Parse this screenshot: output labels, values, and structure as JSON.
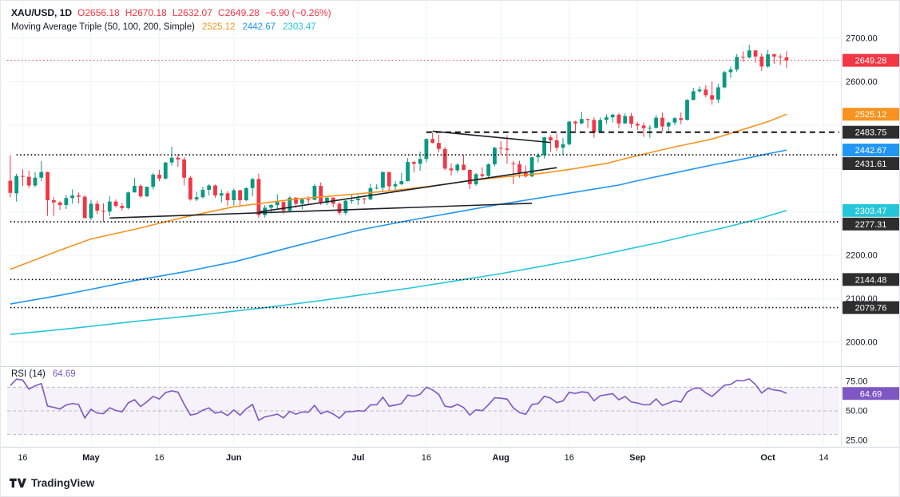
{
  "legend": {
    "title": "XAU/USD, 1D",
    "o_k": "O",
    "o_v": "2656.18",
    "h_k": "H",
    "h_v": "2670.18",
    "l_k": "L",
    "l_v": "2632.07",
    "c_k": "C",
    "c_v": "2649.28",
    "change": "−6.90 (−0.26%)",
    "ma_label": "Moving Average Triple (50, 100, 200, Simple)",
    "ma50": "2525.12",
    "ma100": "2442.67",
    "ma200": "2303.47",
    "rsi_label": "RSI (14)",
    "rsi_value": "64.69"
  },
  "footer": {
    "logo_text": "TradingView"
  },
  "colors": {
    "up": "#089981",
    "down": "#F23645",
    "ma50": "#F7931E",
    "ma100": "#2196F3",
    "ma200": "#26C6DA",
    "rsi": "#7E57C2",
    "rsi_band": "rgba(126,87,194,0.08)",
    "last_price": "#F23645",
    "grid": "#F0F3FA",
    "axis_text": "#131722",
    "badge_dark": "#2E2E2E",
    "level": "#000000",
    "trendline": "#1B1F27",
    "separator": "#D1D4DC",
    "badge_text": "#FFFFFF"
  },
  "chart_data": {
    "type": "candlestick",
    "symbol": "XAU/USD",
    "timeframe": "1D",
    "title": "XAU/USD 1D with Moving Average Triple (50, 100, 200, Simple) and RSI (14)",
    "total_slots": 134,
    "price_axis": {
      "visible_ticks": [
        {
          "v": 2700,
          "label": "2700.00"
        },
        {
          "v": 2600,
          "label": "2600.00"
        },
        {
          "v": 2200,
          "label": "2200.00"
        },
        {
          "v": 2100,
          "label": "2100.00"
        },
        {
          "v": 2000,
          "label": "2000.00"
        }
      ],
      "gridlines": [
        2000,
        2100,
        2200,
        2300,
        2400,
        2500,
        2600,
        2700
      ]
    },
    "time_ticks": [
      {
        "i": 2,
        "label": "16",
        "bold": false
      },
      {
        "i": 13,
        "label": "May",
        "bold": true
      },
      {
        "i": 24,
        "label": "16",
        "bold": false
      },
      {
        "i": 36,
        "label": "Jun",
        "bold": true
      },
      {
        "i": 56,
        "label": "Jul",
        "bold": true
      },
      {
        "i": 67,
        "label": "16",
        "bold": false
      },
      {
        "i": 79,
        "label": "Aug",
        "bold": true
      },
      {
        "i": 90,
        "label": "16",
        "bold": false
      },
      {
        "i": 101,
        "label": "Sep",
        "bold": true
      },
      {
        "i": 122,
        "label": "Oct",
        "bold": true
      },
      {
        "i": 131,
        "label": "14",
        "bold": false
      }
    ],
    "candles": [
      [
        2372,
        2431,
        2334,
        2344
      ],
      [
        2343,
        2388,
        2324,
        2383
      ],
      [
        2383,
        2398,
        2360,
        2381
      ],
      [
        2381,
        2395,
        2355,
        2361
      ],
      [
        2361,
        2392,
        2357,
        2379
      ],
      [
        2379,
        2417,
        2371,
        2392
      ],
      [
        2392,
        2393,
        2291,
        2327
      ],
      [
        2327,
        2334,
        2291,
        2322
      ],
      [
        2322,
        2325,
        2305,
        2316
      ],
      [
        2316,
        2339,
        2307,
        2332
      ],
      [
        2332,
        2352,
        2319,
        2338
      ],
      [
        2338,
        2345,
        2320,
        2335
      ],
      [
        2335,
        2339,
        2285,
        2286
      ],
      [
        2286,
        2328,
        2281,
        2319
      ],
      [
        2319,
        2326,
        2295,
        2303
      ],
      [
        2303,
        2320,
        2277,
        2301
      ],
      [
        2301,
        2336,
        2291,
        2324
      ],
      [
        2324,
        2329,
        2310,
        2314
      ],
      [
        2314,
        2321,
        2303,
        2309
      ],
      [
        2309,
        2347,
        2306,
        2345
      ],
      [
        2345,
        2378,
        2345,
        2360
      ],
      [
        2360,
        2364,
        2332,
        2336
      ],
      [
        2336,
        2359,
        2334,
        2358
      ],
      [
        2358,
        2390,
        2352,
        2386
      ],
      [
        2386,
        2397,
        2371,
        2377
      ],
      [
        2377,
        2415,
        2375,
        2414
      ],
      [
        2414,
        2450,
        2407,
        2425
      ],
      [
        2425,
        2433,
        2404,
        2421
      ],
      [
        2421,
        2426,
        2361,
        2379
      ],
      [
        2379,
        2383,
        2326,
        2329
      ],
      [
        2329,
        2347,
        2325,
        2334
      ],
      [
        2334,
        2358,
        2331,
        2351
      ],
      [
        2351,
        2364,
        2338,
        2361
      ],
      [
        2361,
        2363,
        2333,
        2338
      ],
      [
        2338,
        2352,
        2322,
        2343
      ],
      [
        2343,
        2348,
        2314,
        2327
      ],
      [
        2327,
        2354,
        2315,
        2350
      ],
      [
        2350,
        2351,
        2315,
        2327
      ],
      [
        2327,
        2357,
        2325,
        2355
      ],
      [
        2355,
        2378,
        2336,
        2376
      ],
      [
        2376,
        2388,
        2286,
        2293
      ],
      [
        2293,
        2316,
        2287,
        2310
      ],
      [
        2310,
        2318,
        2297,
        2316
      ],
      [
        2316,
        2341,
        2306,
        2323
      ],
      [
        2323,
        2327,
        2296,
        2303
      ],
      [
        2303,
        2336,
        2301,
        2333
      ],
      [
        2333,
        2334,
        2310,
        2319
      ],
      [
        2319,
        2332,
        2306,
        2329
      ],
      [
        2329,
        2336,
        2319,
        2328
      ],
      [
        2328,
        2365,
        2327,
        2360
      ],
      [
        2360,
        2368,
        2316,
        2321
      ],
      [
        2321,
        2334,
        2316,
        2333
      ],
      [
        2333,
        2334,
        2311,
        2319
      ],
      [
        2319,
        2323,
        2293,
        2298
      ],
      [
        2298,
        2327,
        2293,
        2326
      ],
      [
        2326,
        2339,
        2319,
        2327
      ],
      [
        2327,
        2339,
        2316,
        2331
      ],
      [
        2331,
        2333,
        2318,
        2329
      ],
      [
        2329,
        2365,
        2327,
        2355
      ],
      [
        2355,
        2364,
        2352,
        2356
      ],
      [
        2356,
        2393,
        2348,
        2392
      ],
      [
        2392,
        2392,
        2350,
        2359
      ],
      [
        2359,
        2371,
        2351,
        2364
      ],
      [
        2364,
        2390,
        2362,
        2371
      ],
      [
        2371,
        2424,
        2370,
        2415
      ],
      [
        2415,
        2418,
        2391,
        2411
      ],
      [
        2411,
        2439,
        2395,
        2422
      ],
      [
        2422,
        2469,
        2414,
        2468
      ],
      [
        2468,
        2483,
        2458,
        2459
      ],
      [
        2459,
        2478,
        2438,
        2445
      ],
      [
        2445,
        2450,
        2396,
        2400
      ],
      [
        2400,
        2412,
        2384,
        2396
      ],
      [
        2396,
        2412,
        2391,
        2409
      ],
      [
        2409,
        2432,
        2396,
        2397
      ],
      [
        2397,
        2398,
        2353,
        2364
      ],
      [
        2364,
        2390,
        2360,
        2387
      ],
      [
        2387,
        2403,
        2379,
        2383
      ],
      [
        2383,
        2412,
        2379,
        2410
      ],
      [
        2410,
        2450,
        2405,
        2448
      ],
      [
        2448,
        2463,
        2432,
        2446
      ],
      [
        2446,
        2477,
        2411,
        2443
      ],
      [
        2412,
        2418,
        2364,
        2410
      ],
      [
        2410,
        2418,
        2379,
        2390
      ],
      [
        2390,
        2407,
        2379,
        2382
      ],
      [
        2382,
        2427,
        2380,
        2426
      ],
      [
        2426,
        2436,
        2414,
        2431
      ],
      [
        2431,
        2473,
        2423,
        2472
      ],
      [
        2472,
        2477,
        2439,
        2465
      ],
      [
        2465,
        2480,
        2441,
        2448
      ],
      [
        2448,
        2470,
        2431,
        2456
      ],
      [
        2456,
        2510,
        2453,
        2508
      ],
      [
        2508,
        2510,
        2486,
        2504
      ],
      [
        2504,
        2531,
        2502,
        2514
      ],
      [
        2514,
        2515,
        2493,
        2512
      ],
      [
        2512,
        2518,
        2471,
        2484
      ],
      [
        2484,
        2518,
        2483,
        2512
      ],
      [
        2512,
        2525,
        2503,
        2518
      ],
      [
        2518,
        2527,
        2506,
        2524
      ],
      [
        2524,
        2528,
        2493,
        2504
      ],
      [
        2504,
        2527,
        2503,
        2521
      ],
      [
        2521,
        2528,
        2494,
        2503
      ],
      [
        2503,
        2507,
        2489,
        2499
      ],
      [
        2499,
        2506,
        2473,
        2493
      ],
      [
        2493,
        2500,
        2471,
        2494
      ],
      [
        2494,
        2523,
        2492,
        2517
      ],
      [
        2517,
        2529,
        2485,
        2497
      ],
      [
        2497,
        2508,
        2485,
        2506
      ],
      [
        2506,
        2518,
        2500,
        2516
      ],
      [
        2516,
        2529,
        2502,
        2512
      ],
      [
        2512,
        2560,
        2511,
        2558
      ],
      [
        2558,
        2586,
        2557,
        2578
      ],
      [
        2578,
        2589,
        2575,
        2582
      ],
      [
        2582,
        2592,
        2564,
        2569
      ],
      [
        2569,
        2600,
        2547,
        2559
      ],
      [
        2559,
        2595,
        2551,
        2587
      ],
      [
        2587,
        2625,
        2585,
        2622
      ],
      [
        2622,
        2635,
        2609,
        2628
      ],
      [
        2628,
        2664,
        2623,
        2657
      ],
      [
        2657,
        2670,
        2646,
        2656
      ],
      [
        2656,
        2685,
        2653,
        2672
      ],
      [
        2672,
        2673,
        2644,
        2658
      ],
      [
        2658,
        2665,
        2625,
        2635
      ],
      [
        2635,
        2673,
        2632,
        2663
      ],
      [
        2663,
        2665,
        2641,
        2658
      ],
      [
        2658,
        2664,
        2639,
        2656
      ],
      [
        2656.18,
        2670.18,
        2632.07,
        2649.28
      ]
    ],
    "moving_averages": [
      {
        "name": "SMA 50",
        "color": "#F7931E",
        "last_label": "2525.12",
        "points": [
          [
            0,
            2168
          ],
          [
            8,
            2212
          ],
          [
            13,
            2238
          ],
          [
            20,
            2260
          ],
          [
            28,
            2288
          ],
          [
            36,
            2312
          ],
          [
            46,
            2330
          ],
          [
            56,
            2342
          ],
          [
            62,
            2350
          ],
          [
            68,
            2360
          ],
          [
            74,
            2372
          ],
          [
            79,
            2380
          ],
          [
            85,
            2388
          ],
          [
            90,
            2398
          ],
          [
            96,
            2412
          ],
          [
            101,
            2430
          ],
          [
            107,
            2450
          ],
          [
            113,
            2468
          ],
          [
            118,
            2490
          ],
          [
            122,
            2508
          ],
          [
            125,
            2525.12
          ]
        ]
      },
      {
        "name": "SMA 100",
        "color": "#2196F3",
        "last_label": "2442.67",
        "points": [
          [
            0,
            2088
          ],
          [
            8,
            2108
          ],
          [
            13,
            2122
          ],
          [
            20,
            2142
          ],
          [
            28,
            2162
          ],
          [
            36,
            2185
          ],
          [
            46,
            2222
          ],
          [
            56,
            2258
          ],
          [
            64,
            2280
          ],
          [
            72,
            2300
          ],
          [
            79,
            2318
          ],
          [
            86,
            2334
          ],
          [
            92,
            2348
          ],
          [
            98,
            2362
          ],
          [
            101,
            2372
          ],
          [
            107,
            2390
          ],
          [
            113,
            2408
          ],
          [
            118,
            2422
          ],
          [
            122,
            2434
          ],
          [
            125,
            2442.67
          ]
        ]
      },
      {
        "name": "SMA 200",
        "color": "#26C6DA",
        "last_label": "2303.47",
        "points": [
          [
            0,
            2018
          ],
          [
            10,
            2032
          ],
          [
            20,
            2048
          ],
          [
            30,
            2062
          ],
          [
            40,
            2078
          ],
          [
            50,
            2096
          ],
          [
            56,
            2108
          ],
          [
            64,
            2124
          ],
          [
            72,
            2142
          ],
          [
            79,
            2158
          ],
          [
            86,
            2176
          ],
          [
            92,
            2192
          ],
          [
            98,
            2210
          ],
          [
            104,
            2228
          ],
          [
            110,
            2248
          ],
          [
            115,
            2264
          ],
          [
            120,
            2282
          ],
          [
            125,
            2303.47
          ]
        ]
      }
    ],
    "levels": [
      {
        "value": 2483.75,
        "label": "2483.75",
        "style": "dashed",
        "from_i": 67
      },
      {
        "value": 2431.61,
        "label": "2431.61",
        "style": "dotted",
        "from_i": 1
      },
      {
        "value": 2277.31,
        "label": "2277.31",
        "style": "dotted",
        "from_i": 0
      },
      {
        "value": 2144.48,
        "label": "2144.48",
        "style": "dotted",
        "from_i": 0
      },
      {
        "value": 2079.76,
        "label": "2079.76",
        "style": "dotted",
        "from_i": 0
      }
    ],
    "last_price": {
      "value": 2649.28,
      "label": "2649.28"
    },
    "trendlines": [
      {
        "from": [
          16,
          2286
        ],
        "to": [
          84,
          2320
        ]
      },
      {
        "from": [
          40,
          2300
        ],
        "to": [
          88,
          2402
        ]
      },
      {
        "from": [
          68,
          2486
        ],
        "to": [
          87,
          2460
        ]
      }
    ],
    "axis_badges": [
      {
        "label": "2649.28",
        "value": 2649.28,
        "bg": "#F23645"
      },
      {
        "label": "2525.12",
        "value": 2525.12,
        "bg": "#F7931E"
      },
      {
        "label": "2483.75",
        "value": 2483.75,
        "bg": "#2E2E2E"
      },
      {
        "label": "2442.67",
        "value": 2442.67,
        "bg": "#2196F3"
      },
      {
        "label": "2431.61",
        "value": 2431.61,
        "bg": "#2E2E2E"
      },
      {
        "label": "2303.47",
        "value": 2303.47,
        "bg": "#26C6DA"
      },
      {
        "label": "2277.31",
        "value": 2277.31,
        "bg": "#2E2E2E"
      },
      {
        "label": "2144.48",
        "value": 2144.48,
        "bg": "#2E2E2E"
      },
      {
        "label": "2079.76",
        "value": 2079.76,
        "bg": "#2E2E2E"
      }
    ],
    "rsi": {
      "label": "RSI (14)",
      "last_value": 64.69,
      "badge_label": "64.69",
      "badge_bg": "#7E57C2",
      "band": [
        30,
        70
      ],
      "mid": 50,
      "ticks": [
        {
          "v": 75,
          "label": "75.00"
        },
        {
          "v": 50,
          "label": "50.00"
        },
        {
          "v": 25,
          "label": "25.00"
        }
      ]
    }
  }
}
